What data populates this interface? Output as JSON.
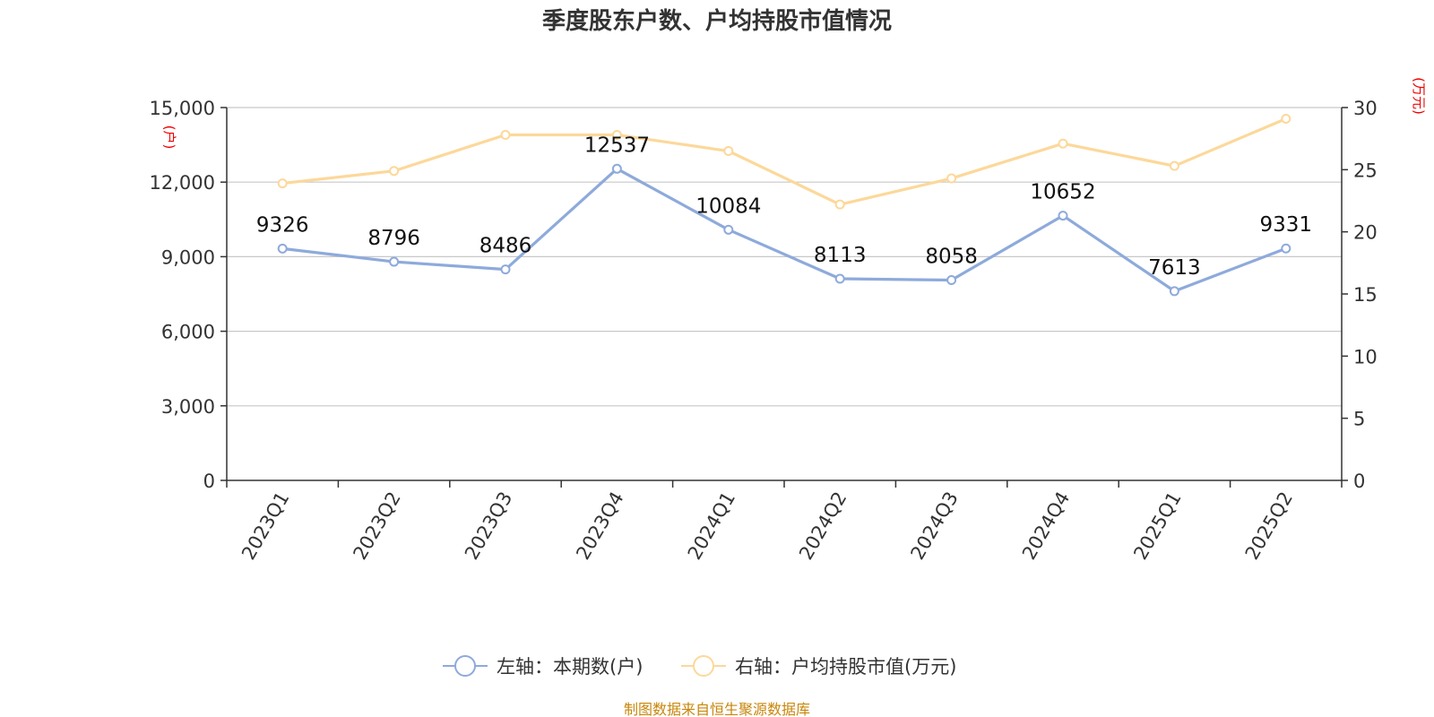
{
  "chart_data": {
    "type": "line",
    "title": "季度股东户数、户均持股市值情况",
    "categories": [
      "2023Q1",
      "2023Q2",
      "2023Q3",
      "2023Q4",
      "2024Q1",
      "2024Q2",
      "2024Q3",
      "2024Q4",
      "2025Q1",
      "2025Q2"
    ],
    "left_axis": {
      "unit": "(户)",
      "ylim": [
        0,
        15000
      ],
      "ticks": [
        "0",
        "3,000",
        "6,000",
        "9,000",
        "12,000",
        "15,000"
      ]
    },
    "right_axis": {
      "unit": "(万元)",
      "ylim": [
        0,
        30
      ],
      "ticks": [
        "0",
        "5",
        "10",
        "15",
        "20",
        "25",
        "30"
      ]
    },
    "series": [
      {
        "name": "左轴：本期数(户)",
        "axis": "left",
        "color": "#8eaadb",
        "values": [
          9326,
          8796,
          8486,
          12537,
          10084,
          8113,
          8058,
          10652,
          7613,
          9331
        ],
        "labels": [
          "9326",
          "8796",
          "8486",
          "12537",
          "10084",
          "8113",
          "8058",
          "10652",
          "7613",
          "9331"
        ]
      },
      {
        "name": "右轴：户均持股市值(万元)",
        "axis": "right",
        "color": "#fcd89a",
        "values": [
          23.9,
          24.9,
          27.8,
          27.8,
          26.5,
          22.2,
          24.3,
          27.1,
          25.3,
          29.1
        ]
      }
    ],
    "grid": true,
    "legend": "bottom-center",
    "source": "制图数据来自恒生聚源数据库"
  }
}
